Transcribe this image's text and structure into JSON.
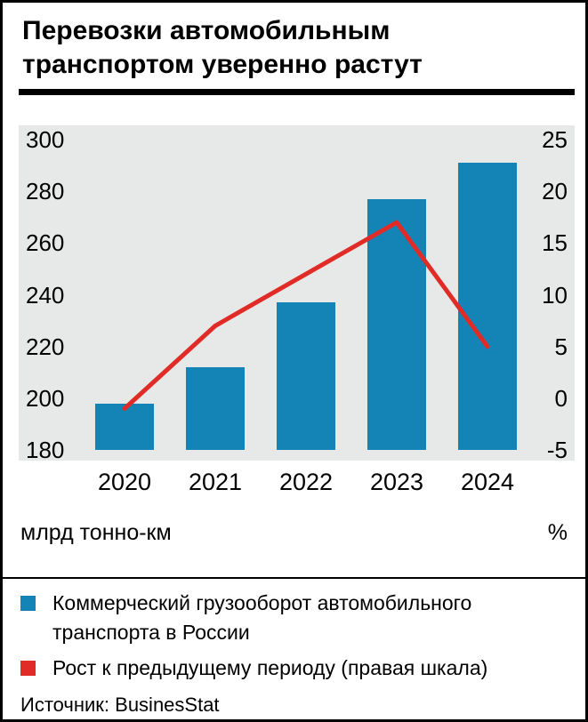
{
  "header": {
    "title_line1": "Перевозки автомобильным",
    "title_line2": "транспортом уверенно растут"
  },
  "chart_data": {
    "type": "bar",
    "categories": [
      "2020",
      "2021",
      "2022",
      "2023",
      "2024"
    ],
    "series": [
      {
        "name": "Коммерческий грузооборот автомобильного транспорта в России",
        "type": "bar",
        "axis": "left",
        "color": "#1484b6",
        "values": [
          198,
          212,
          237,
          277,
          291
        ]
      },
      {
        "name": "Рост к предыдущему периоду (правая шкала)",
        "type": "line",
        "axis": "right",
        "color": "#e12b27",
        "values": [
          -1,
          7,
          12,
          17,
          5
        ]
      }
    ],
    "left_axis": {
      "unit_label": "млрд тонно-км",
      "min": 180,
      "max": 300,
      "ticks": [
        300,
        280,
        260,
        240,
        220,
        200,
        180
      ]
    },
    "right_axis": {
      "unit_label": "%",
      "min": -5,
      "max": 25,
      "ticks": [
        25,
        20,
        15,
        10,
        5,
        0,
        -5
      ]
    },
    "plot_background": "#e7e8e8",
    "grid": false,
    "legend_position": "bottom"
  },
  "legend": {
    "items": [
      {
        "label": "Коммерческий грузооборот автомобильного транспорта в России",
        "color": "#1484b6"
      },
      {
        "label": "Рост к предыдущему периоду (правая шкала)",
        "color": "#e12b27"
      }
    ]
  },
  "footer": {
    "source": "Источник: BusinesStat"
  }
}
